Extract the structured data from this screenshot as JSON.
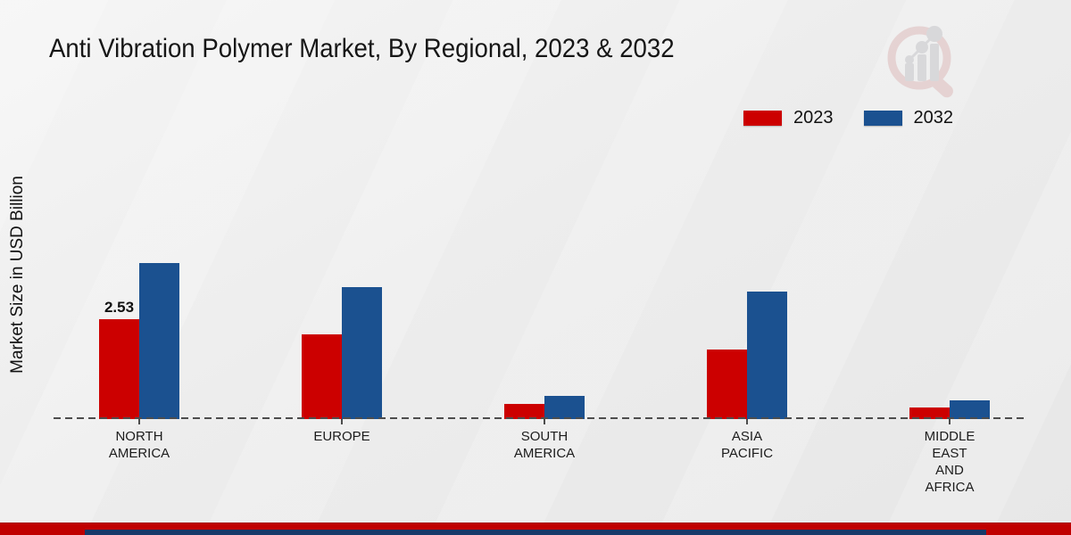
{
  "title": "Anti Vibration Polymer Market, By Regional, 2023 & 2032",
  "ylabel": "Market Size in USD Billion",
  "legend": [
    {
      "label": "2023",
      "color": "#cc0000"
    },
    {
      "label": "2032",
      "color": "#1b5190"
    }
  ],
  "chart_data": {
    "type": "bar",
    "title": "Anti Vibration Polymer Market, By Regional, 2023 & 2032",
    "xlabel": "",
    "ylabel": "Market Size in USD Billion",
    "unit": "USD Billion",
    "categories": [
      "NORTH AMERICA",
      "EUROPE",
      "SOUTH AMERICA",
      "ASIA PACIFIC",
      "MIDDLE EAST AND AFRICA"
    ],
    "category_display": [
      [
        "NORTH",
        "AMERICA"
      ],
      [
        "EUROPE"
      ],
      [
        "SOUTH",
        "AMERICA"
      ],
      [
        "ASIA",
        "PACIFIC"
      ],
      [
        "MIDDLE",
        "EAST",
        "AND",
        "AFRICA"
      ]
    ],
    "series": [
      {
        "name": "2023",
        "color": "#cc0000",
        "values": [
          2.53,
          2.15,
          0.38,
          1.76,
          0.29
        ]
      },
      {
        "name": "2032",
        "color": "#1b5190",
        "values": [
          3.95,
          3.34,
          0.59,
          3.23,
          0.47
        ]
      }
    ],
    "annotations": [
      {
        "text": "2.53",
        "category_index": 0,
        "series_index": 0
      }
    ],
    "ylim": [
      0,
      4.5
    ],
    "grid": "off",
    "baseline_style": "dashed",
    "legend_position": "top-right"
  },
  "footer": {
    "red_bar_color": "#c00000",
    "blue_bar_color": "#163a6a"
  },
  "watermark_name": "market-research-future-logo"
}
